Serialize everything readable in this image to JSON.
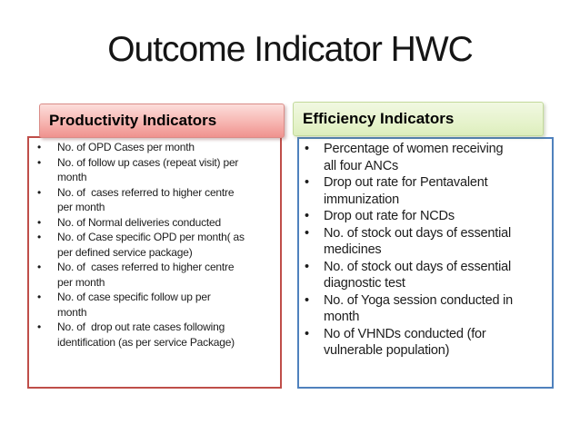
{
  "slide_title": "Outcome Indicator HWC",
  "panels": {
    "productivity": {
      "header": "Productivity Indicators",
      "items": [
        "No. of OPD Cases per month",
        "No. of follow up cases (repeat visit) per\nmonth",
        "No. of  cases referred to higher centre\nper month",
        "No. of Normal deliveries conducted",
        "No. of Case specific OPD per month( as\nper defined service package)",
        "No. of  cases referred to higher centre\nper month",
        "No. of case specific follow up per\nmonth",
        "No. of  drop out rate cases following\nidentification (as per service Package)"
      ]
    },
    "efficiency": {
      "header": "Efficiency Indicators",
      "items": [
        "Percentage of women receiving\nall four ANCs",
        "Drop out rate for Pentavalent\nimmunization",
        "Drop out rate for NCDs",
        "No. of stock out days of essential\nmedicines",
        "No. of stock out days of essential\ndiagnostic test",
        "No. of Yoga session conducted in\nmonth",
        "No of VHNDs conducted (for\nvulnerable population)"
      ]
    }
  },
  "colors": {
    "background": "#ffffff",
    "title_text": "#151515",
    "body_text": "#1c1c1c",
    "productivity_header_fill_top": "#fcdedb",
    "productivity_header_fill_bottom": "#ef928e",
    "productivity_header_border": "#da8c88",
    "productivity_box_border": "#bf4e49",
    "efficiency_header_fill_top": "#f1f8e2",
    "efficiency_header_fill_bottom": "#ddeebd",
    "efficiency_header_border": "#c3da9c",
    "efficiency_box_border": "#4f81bd"
  }
}
